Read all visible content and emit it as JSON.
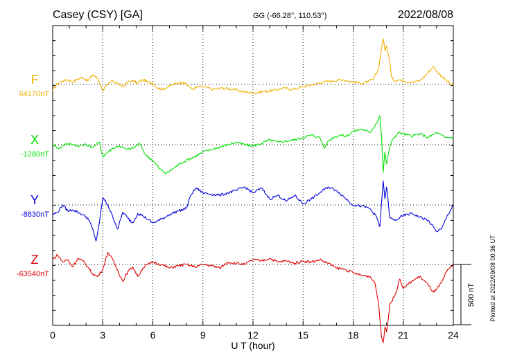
{
  "header": {
    "station": "Casey (CSY)  [GA]",
    "coords": "GG (-66.28°, 110.53°)",
    "date": "2022/08/08"
  },
  "footer": {
    "xlabel": "U T (hour)",
    "scale_label": "500 nT",
    "plotted": "Plotted at 2022/09/08 00:36 UT"
  },
  "chart_data": {
    "type": "line",
    "xlabel": "U T (hour)",
    "xlim": [
      0,
      24
    ],
    "x_ticks": [
      "0",
      "3",
      "6",
      "9",
      "12",
      "15",
      "18",
      "21",
      "24"
    ],
    "grid": "vertical dotted every 3 h, horizontal dotted baseline per trace",
    "scale_bar_nT": 500,
    "series": [
      {
        "name": "F",
        "baseline_label": "64170nT",
        "baseline_nT": 64170,
        "color": "#f0b000",
        "x": [
          0,
          0.3,
          0.6,
          0.9,
          1.2,
          1.5,
          1.8,
          2.1,
          2.4,
          2.7,
          3.0,
          3.3,
          3.6,
          3.9,
          4.2,
          4.5,
          4.8,
          5.1,
          5.4,
          5.7,
          6.0,
          6.3,
          6.6,
          6.9,
          7.2,
          7.5,
          7.8,
          8.1,
          8.4,
          8.7,
          9.0,
          9.6,
          10.2,
          10.8,
          11.4,
          12.0,
          12.6,
          13.2,
          13.8,
          14.4,
          15.0,
          15.6,
          16.2,
          16.8,
          17.4,
          18.0,
          18.6,
          19.2,
          19.5,
          19.7,
          19.8,
          19.9,
          20.0,
          20.1,
          20.2,
          20.3,
          20.5,
          20.7,
          21.0,
          21.5,
          22.0,
          22.5,
          22.8,
          23.0,
          23.3,
          23.6,
          24.0
        ],
        "values": [
          -50,
          10,
          30,
          40,
          20,
          45,
          60,
          30,
          80,
          50,
          -50,
          0,
          30,
          10,
          -20,
          20,
          30,
          10,
          40,
          20,
          10,
          -30,
          -40,
          -20,
          0,
          10,
          20,
          -10,
          -40,
          -20,
          -20,
          -40,
          -30,
          -40,
          -60,
          -70,
          -60,
          -50,
          -30,
          -40,
          -20,
          0,
          20,
          30,
          40,
          20,
          10,
          40,
          120,
          300,
          380,
          280,
          320,
          250,
          180,
          60,
          30,
          40,
          30,
          20,
          30,
          100,
          150,
          110,
          70,
          30,
          -10
        ]
      },
      {
        "name": "X",
        "baseline_label": "-1280nT",
        "baseline_nT": -1280,
        "color": "#00e000",
        "x": [
          0,
          0.4,
          0.8,
          1.2,
          1.6,
          2.0,
          2.4,
          2.8,
          3.0,
          3.3,
          3.6,
          4.0,
          4.4,
          4.8,
          5.2,
          5.6,
          6.0,
          6.4,
          6.8,
          7.2,
          7.6,
          8.0,
          8.5,
          9.0,
          9.5,
          10.0,
          10.5,
          11.0,
          11.5,
          12.0,
          12.5,
          13.0,
          13.5,
          14.0,
          14.5,
          15.0,
          15.5,
          16.0,
          16.3,
          16.5,
          16.8,
          17.2,
          17.6,
          18.0,
          18.5,
          19.0,
          19.4,
          19.6,
          19.7,
          19.8,
          19.9,
          20.0,
          20.2,
          20.4,
          20.7,
          21.0,
          21.5,
          22.0,
          22.5,
          23.0,
          23.5,
          24.0
        ],
        "values": [
          0,
          -30,
          10,
          0,
          -10,
          0,
          -20,
          20,
          -100,
          -60,
          -30,
          -10,
          -40,
          -30,
          10,
          -90,
          -130,
          -200,
          -240,
          -200,
          -160,
          -130,
          -100,
          -60,
          -40,
          -20,
          0,
          20,
          0,
          -10,
          10,
          40,
          20,
          30,
          40,
          60,
          80,
          60,
          -30,
          30,
          60,
          80,
          70,
          110,
          130,
          100,
          180,
          240,
          80,
          -230,
          -60,
          -160,
          -10,
          50,
          100,
          90,
          70,
          90,
          60,
          100,
          60,
          60
        ]
      },
      {
        "name": "Y",
        "baseline_label": "-8830nT",
        "baseline_nT": -8830,
        "color": "#0000dd",
        "x": [
          0,
          0.3,
          0.6,
          0.9,
          1.2,
          1.5,
          1.8,
          2.1,
          2.4,
          2.6,
          2.8,
          3.0,
          3.3,
          3.6,
          3.9,
          4.2,
          4.5,
          4.8,
          5.1,
          5.4,
          5.7,
          6.0,
          6.5,
          7.0,
          7.5,
          8.0,
          8.3,
          8.6,
          9.0,
          9.5,
          10.0,
          10.5,
          11.0,
          11.5,
          12.0,
          12.5,
          13.0,
          13.5,
          14.0,
          14.5,
          15.0,
          15.5,
          16.0,
          16.5,
          17.0,
          17.5,
          18.0,
          18.5,
          19.0,
          19.4,
          19.6,
          19.8,
          19.9,
          20.0,
          20.2,
          20.5,
          21.0,
          21.5,
          22.0,
          22.5,
          23.0,
          23.3,
          23.6,
          24.0
        ],
        "values": [
          -80,
          -60,
          0,
          -50,
          -40,
          -60,
          -80,
          -110,
          -200,
          -300,
          -150,
          60,
          0,
          -100,
          -200,
          -60,
          -110,
          -150,
          -70,
          -90,
          -120,
          -150,
          -120,
          -80,
          -50,
          -30,
          90,
          140,
          100,
          90,
          80,
          100,
          120,
          150,
          100,
          140,
          50,
          80,
          30,
          80,
          10,
          50,
          100,
          150,
          120,
          60,
          0,
          -10,
          -30,
          -100,
          -180,
          200,
          50,
          150,
          -110,
          -130,
          -90,
          -70,
          -100,
          -130,
          -220,
          -200,
          -100,
          0
        ]
      },
      {
        "name": "Z",
        "baseline_label": "-63540nT",
        "baseline_nT": -63540,
        "color": "#e00000",
        "x": [
          0,
          0.3,
          0.6,
          0.9,
          1.2,
          1.5,
          1.8,
          2.1,
          2.4,
          2.7,
          3.0,
          3.3,
          3.6,
          3.9,
          4.2,
          4.5,
          4.8,
          5.1,
          5.4,
          5.7,
          6.0,
          6.5,
          7.0,
          7.5,
          8.0,
          8.5,
          9.0,
          9.5,
          10.0,
          10.5,
          11.0,
          11.5,
          12.0,
          12.5,
          13.0,
          13.5,
          14.0,
          14.5,
          15.0,
          15.5,
          16.0,
          16.5,
          17.0,
          17.5,
          18.0,
          18.5,
          19.0,
          19.3,
          19.5,
          19.7,
          19.8,
          19.9,
          20.0,
          20.2,
          20.5,
          20.8,
          21.0,
          21.5,
          22.0,
          22.5,
          22.8,
          23.0,
          23.3,
          23.6,
          24.0
        ],
        "values": [
          40,
          80,
          20,
          40,
          -20,
          50,
          30,
          -20,
          -80,
          -100,
          -40,
          100,
          40,
          -50,
          -140,
          -60,
          -20,
          -100,
          -30,
          0,
          20,
          0,
          -30,
          -10,
          0,
          -20,
          0,
          -10,
          -30,
          20,
          10,
          0,
          40,
          30,
          50,
          20,
          30,
          10,
          30,
          20,
          40,
          10,
          -30,
          -40,
          -70,
          -90,
          -100,
          -150,
          -300,
          -600,
          -650,
          -520,
          -560,
          -330,
          -260,
          -120,
          -200,
          -140,
          -100,
          -170,
          -230,
          -210,
          -150,
          -60,
          0
        ]
      }
    ]
  }
}
